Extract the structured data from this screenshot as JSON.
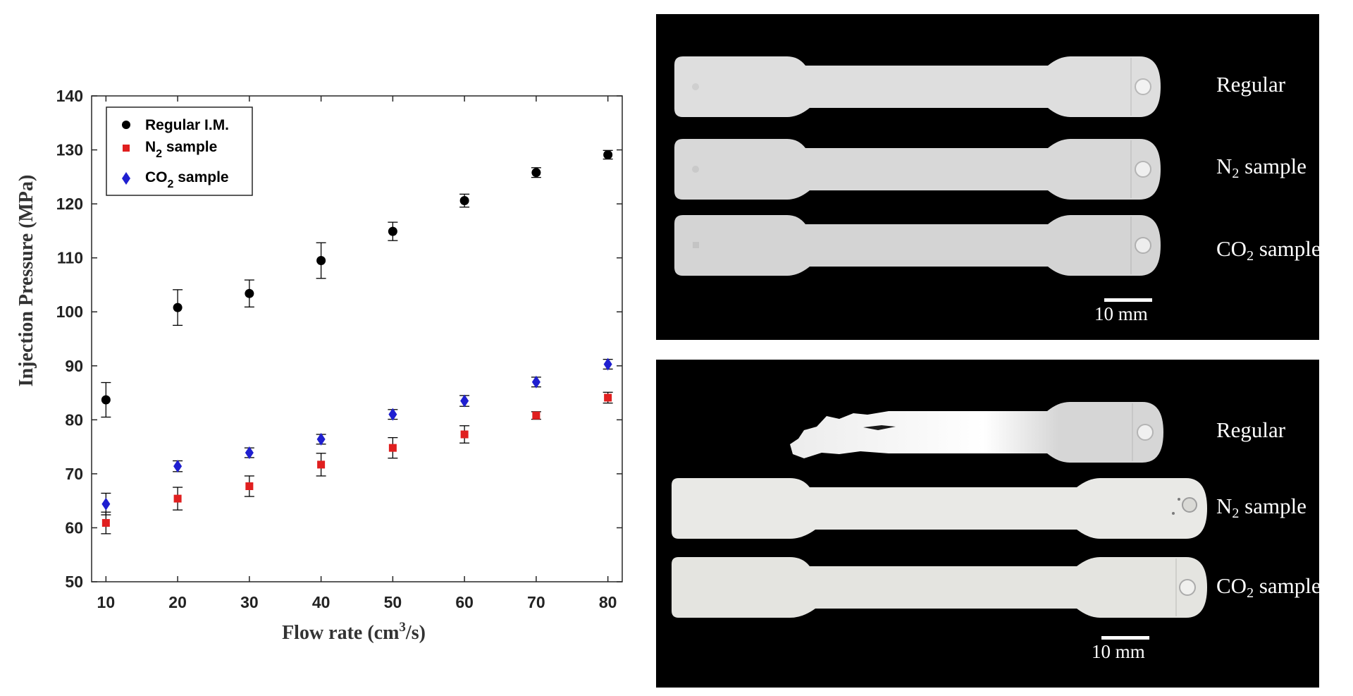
{
  "chart_data": {
    "type": "scatter",
    "ylabel": "Injection Pressure (MPa)",
    "xlabel_prefix": "Flow rate (cm",
    "xlabel_sup": "3",
    "xlabel_suffix": "/s)",
    "xlim": [
      8,
      82
    ],
    "ylim": [
      50,
      140
    ],
    "x_ticks": [
      10,
      20,
      30,
      40,
      50,
      60,
      70,
      80
    ],
    "y_ticks": [
      50,
      60,
      70,
      80,
      90,
      100,
      110,
      120,
      130,
      140
    ],
    "grid": false,
    "legend_position": "top-left",
    "x": [
      10,
      20,
      30,
      40,
      50,
      60,
      70,
      80
    ],
    "series": [
      {
        "name": "Regular I.M.",
        "legend_main": "Regular I.M.",
        "legend_sub": "",
        "legend_rest": "",
        "color": "#000000",
        "marker": "circle",
        "values": [
          83.7,
          100.8,
          103.4,
          109.5,
          114.9,
          120.6,
          125.8,
          129.1
        ],
        "errors": [
          3.2,
          3.3,
          2.5,
          3.3,
          1.7,
          1.2,
          0.9,
          0.8
        ]
      },
      {
        "name": "N2 sample",
        "legend_main": "N",
        "legend_sub": "2",
        "legend_rest": " sample",
        "color": "#e01f1f",
        "marker": "square",
        "values": [
          60.9,
          65.4,
          67.7,
          71.7,
          74.8,
          77.3,
          80.8,
          84.1
        ],
        "errors": [
          2.0,
          2.1,
          1.9,
          2.1,
          1.9,
          1.6,
          0.7,
          1.0
        ]
      },
      {
        "name": "CO2 sample",
        "legend_main": "CO",
        "legend_sub": "2",
        "legend_rest": " sample",
        "color": "#1f1fd0",
        "marker": "diamond",
        "values": [
          64.4,
          71.4,
          73.9,
          76.4,
          81.0,
          83.5,
          87.0,
          90.3
        ],
        "errors": [
          2.0,
          1.0,
          0.9,
          0.9,
          0.9,
          1.0,
          0.9,
          0.9
        ]
      }
    ]
  },
  "photos": {
    "top": {
      "label_regular": "Regular",
      "label_n2_main": "N",
      "label_n2_sub": "2",
      "label_n2_rest": " sample",
      "label_co2_main": "CO",
      "label_co2_sub": "2",
      "label_co2_rest": " sample",
      "scale_text": "10 mm"
    },
    "bottom": {
      "label_regular": "Regular",
      "label_n2_main": "N",
      "label_n2_sub": "2",
      "label_n2_rest": " sample",
      "label_co2_main": "CO",
      "label_co2_sub": "2",
      "label_co2_rest": " sample",
      "scale_text": "10 mm"
    }
  }
}
